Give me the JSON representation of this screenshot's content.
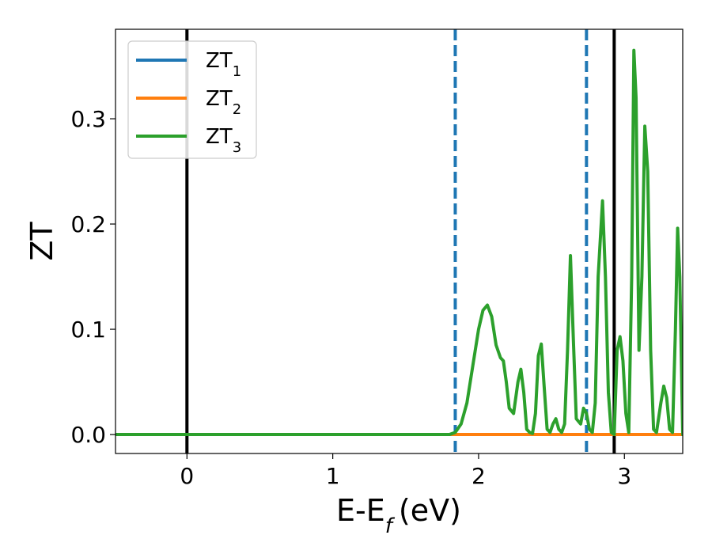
{
  "chart_data": {
    "type": "line",
    "xlabel": "E-E",
    "xlabel_sub": "f",
    "xlabel_unit": "(eV)",
    "ylabel": "ZT",
    "xlim": [
      -0.49,
      3.4
    ],
    "ylim": [
      -0.018,
      0.385
    ],
    "xticks": [
      0,
      1,
      2,
      3
    ],
    "yticks": [
      0.0,
      0.1,
      0.2,
      0.3
    ],
    "xtick_labels": [
      "0",
      "1",
      "2",
      "3"
    ],
    "ytick_labels": [
      "0.0",
      "0.1",
      "0.2",
      "0.3"
    ],
    "grid": false,
    "legend": {
      "position": "top-left",
      "entries": [
        {
          "base": "ZT",
          "sub": "1",
          "color": "#1f77b4"
        },
        {
          "base": "ZT",
          "sub": "2",
          "color": "#ff7f0e"
        },
        {
          "base": "ZT",
          "sub": "3",
          "color": "#2ca02c"
        }
      ]
    },
    "vlines": [
      {
        "x": 0.0,
        "style": "solid",
        "color": "#000000"
      },
      {
        "x": 1.84,
        "style": "dashed",
        "color": "#1f77b4"
      },
      {
        "x": 2.74,
        "style": "dashed",
        "color": "#1f77b4"
      },
      {
        "x": 2.93,
        "style": "solid",
        "color": "#000000"
      }
    ],
    "series": [
      {
        "name": "ZT1",
        "color": "#1f77b4",
        "x": [
          -0.49,
          3.4
        ],
        "y": [
          0.0,
          0.0
        ]
      },
      {
        "name": "ZT2",
        "color": "#ff7f0e",
        "x": [
          -0.49,
          3.4
        ],
        "y": [
          0.0,
          0.0
        ]
      },
      {
        "name": "ZT3",
        "color": "#2ca02c",
        "x": [
          -0.49,
          1.8,
          1.84,
          1.88,
          1.92,
          1.96,
          2.0,
          2.03,
          2.06,
          2.09,
          2.12,
          2.15,
          2.17,
          2.19,
          2.21,
          2.24,
          2.27,
          2.29,
          2.31,
          2.33,
          2.35,
          2.37,
          2.39,
          2.41,
          2.43,
          2.45,
          2.47,
          2.49,
          2.51,
          2.53,
          2.55,
          2.57,
          2.59,
          2.61,
          2.63,
          2.65,
          2.67,
          2.7,
          2.72,
          2.74,
          2.76,
          2.78,
          2.8,
          2.82,
          2.85,
          2.87,
          2.89,
          2.91,
          2.93,
          2.95,
          2.97,
          2.99,
          3.01,
          3.03,
          3.05,
          3.065,
          3.08,
          3.1,
          3.12,
          3.14,
          3.16,
          3.18,
          3.2,
          3.22,
          3.25,
          3.27,
          3.29,
          3.31,
          3.33,
          3.35,
          3.365,
          3.38,
          3.4
        ],
        "y": [
          0.0,
          0.0,
          0.002,
          0.01,
          0.03,
          0.065,
          0.1,
          0.118,
          0.123,
          0.112,
          0.085,
          0.073,
          0.07,
          0.05,
          0.025,
          0.02,
          0.05,
          0.062,
          0.04,
          0.005,
          0.002,
          0.001,
          0.02,
          0.075,
          0.086,
          0.045,
          0.005,
          0.002,
          0.01,
          0.015,
          0.005,
          0.002,
          0.01,
          0.08,
          0.17,
          0.09,
          0.015,
          0.01,
          0.025,
          0.02,
          0.005,
          0.002,
          0.03,
          0.15,
          0.222,
          0.15,
          0.04,
          0.002,
          0.0,
          0.08,
          0.093,
          0.07,
          0.02,
          0.002,
          0.15,
          0.365,
          0.32,
          0.08,
          0.15,
          0.293,
          0.25,
          0.08,
          0.005,
          0.002,
          0.03,
          0.046,
          0.035,
          0.005,
          0.002,
          0.1,
          0.196,
          0.15,
          0.0
        ]
      }
    ]
  }
}
